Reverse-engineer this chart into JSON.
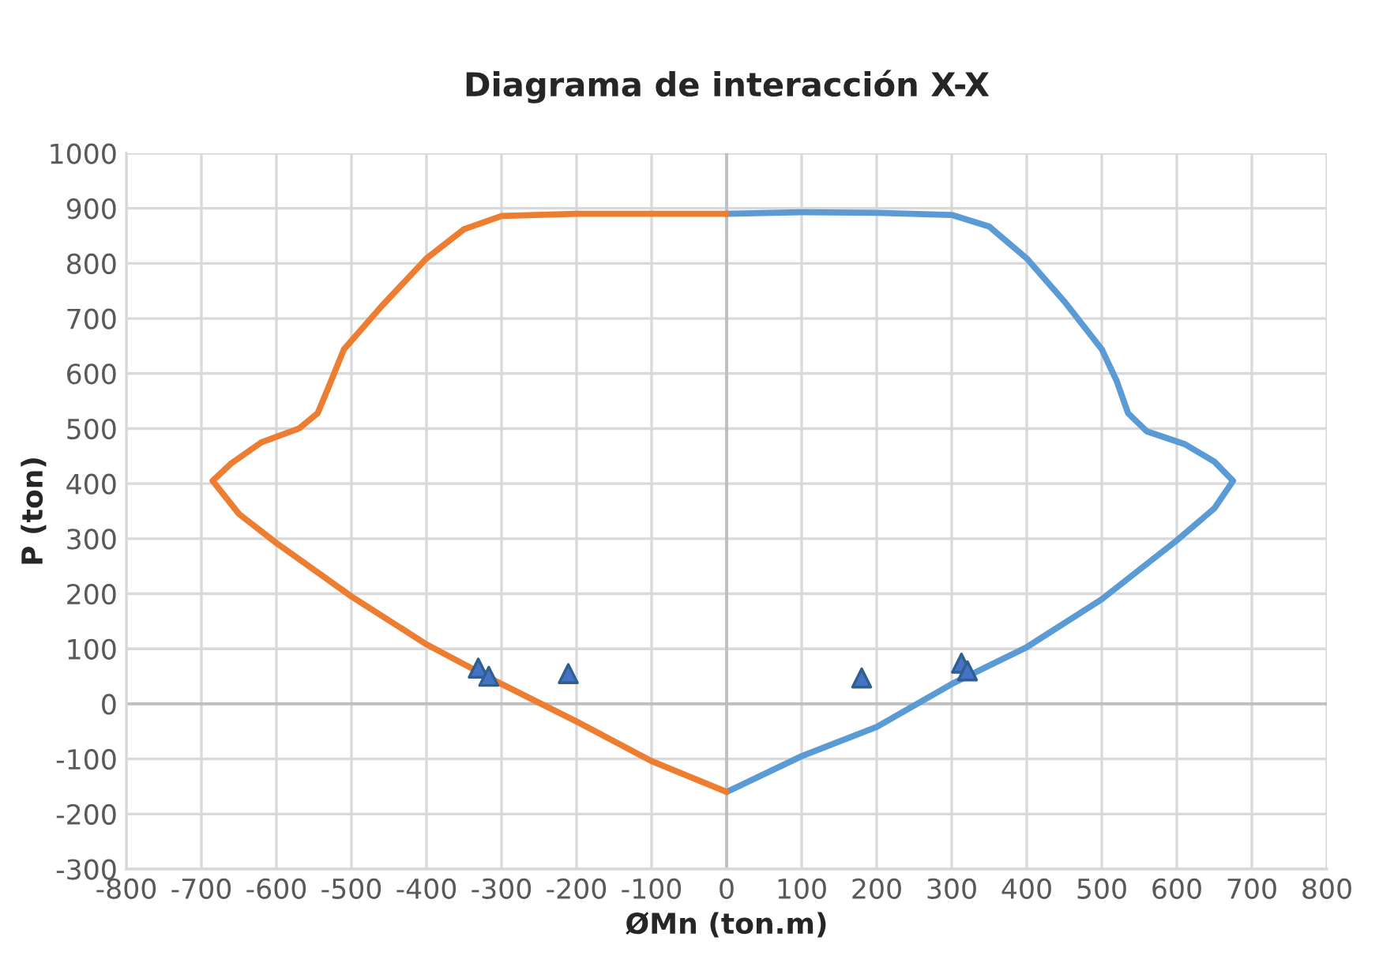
{
  "chart_data": {
    "type": "line",
    "title": "Diagrama de interacción X-X",
    "xlabel": "ØMn (ton.m)",
    "ylabel": "P (ton)",
    "xlim": [
      -800,
      800
    ],
    "ylim": [
      -300,
      1000
    ],
    "xticks": [
      -800,
      -700,
      -600,
      -500,
      -400,
      -300,
      -200,
      -100,
      0,
      100,
      200,
      300,
      400,
      500,
      600,
      700,
      800
    ],
    "yticks": [
      -300,
      -200,
      -100,
      0,
      100,
      200,
      300,
      400,
      500,
      600,
      700,
      800,
      900,
      1000
    ],
    "grid": true,
    "series": [
      {
        "color": "#5b9bd5",
        "marker": "none",
        "x": [
          0,
          100,
          200,
          300,
          400,
          500,
          600,
          650,
          675,
          650,
          610,
          560,
          535,
          520,
          500,
          450,
          400,
          350,
          300,
          200,
          100,
          0
        ],
        "values": [
          -160,
          -95,
          -42,
          36,
          103,
          190,
          297,
          355,
          405,
          440,
          472,
          495,
          528,
          586,
          644,
          731,
          809,
          867,
          888,
          892,
          893,
          890
        ]
      },
      {
        "color": "#ed7d31",
        "marker": "none",
        "x": [
          0,
          -100,
          -200,
          -300,
          -400,
          -500,
          -600,
          -650,
          -685,
          -660,
          -620,
          -570,
          -545,
          -530,
          -510,
          -460,
          -400,
          -350,
          -300,
          -200,
          0
        ],
        "values": [
          -160,
          -104,
          -32,
          36,
          108,
          195,
          292,
          345,
          405,
          437,
          475,
          500,
          528,
          577,
          644,
          722,
          809,
          862,
          886,
          890,
          890
        ]
      },
      {
        "type": "scatter",
        "color": "#4472c4",
        "marker": "triangle",
        "x": [
          -331,
          -317,
          -211,
          180,
          313,
          321
        ],
        "values": [
          65,
          50,
          55,
          47,
          74,
          60
        ]
      }
    ]
  }
}
